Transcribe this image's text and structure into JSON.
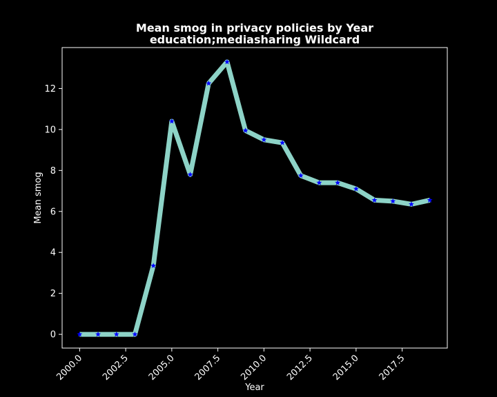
{
  "chart_data": {
    "type": "line",
    "title": "Mean smog in privacy policies by Year",
    "subtitle": "education;mediasharing Wildcard",
    "xlabel": "Year",
    "ylabel": "Mean smog",
    "xlim": [
      1999.05,
      2019.95
    ],
    "ylim": [
      -0.67,
      14.0
    ],
    "xticks": [
      2000.0,
      2002.5,
      2005.0,
      2007.5,
      2010.0,
      2012.5,
      2015.0,
      2017.5
    ],
    "xtick_labels": [
      "2000.0",
      "2002.5",
      "2005.0",
      "2007.5",
      "2010.0",
      "2012.5",
      "2015.0",
      "2017.5"
    ],
    "yticks": [
      0,
      2,
      4,
      6,
      8,
      10,
      12
    ],
    "ytick_labels": [
      "0",
      "2",
      "4",
      "6",
      "8",
      "10",
      "12"
    ],
    "grid": false,
    "series": [
      {
        "line_color": "#8dd3c7",
        "marker_color": "#0000ff",
        "marker": "star",
        "x": [
          2000,
          2001,
          2002,
          2003,
          2004,
          2005,
          2006,
          2007,
          2008,
          2009,
          2010,
          2011,
          2012,
          2013,
          2014,
          2015,
          2016,
          2017,
          2018,
          2019
        ],
        "y": [
          0,
          0,
          0,
          0,
          3.35,
          10.4,
          7.8,
          12.25,
          13.3,
          9.95,
          9.5,
          9.35,
          7.75,
          7.4,
          7.4,
          7.1,
          6.55,
          6.5,
          6.35,
          6.55
        ]
      }
    ]
  }
}
